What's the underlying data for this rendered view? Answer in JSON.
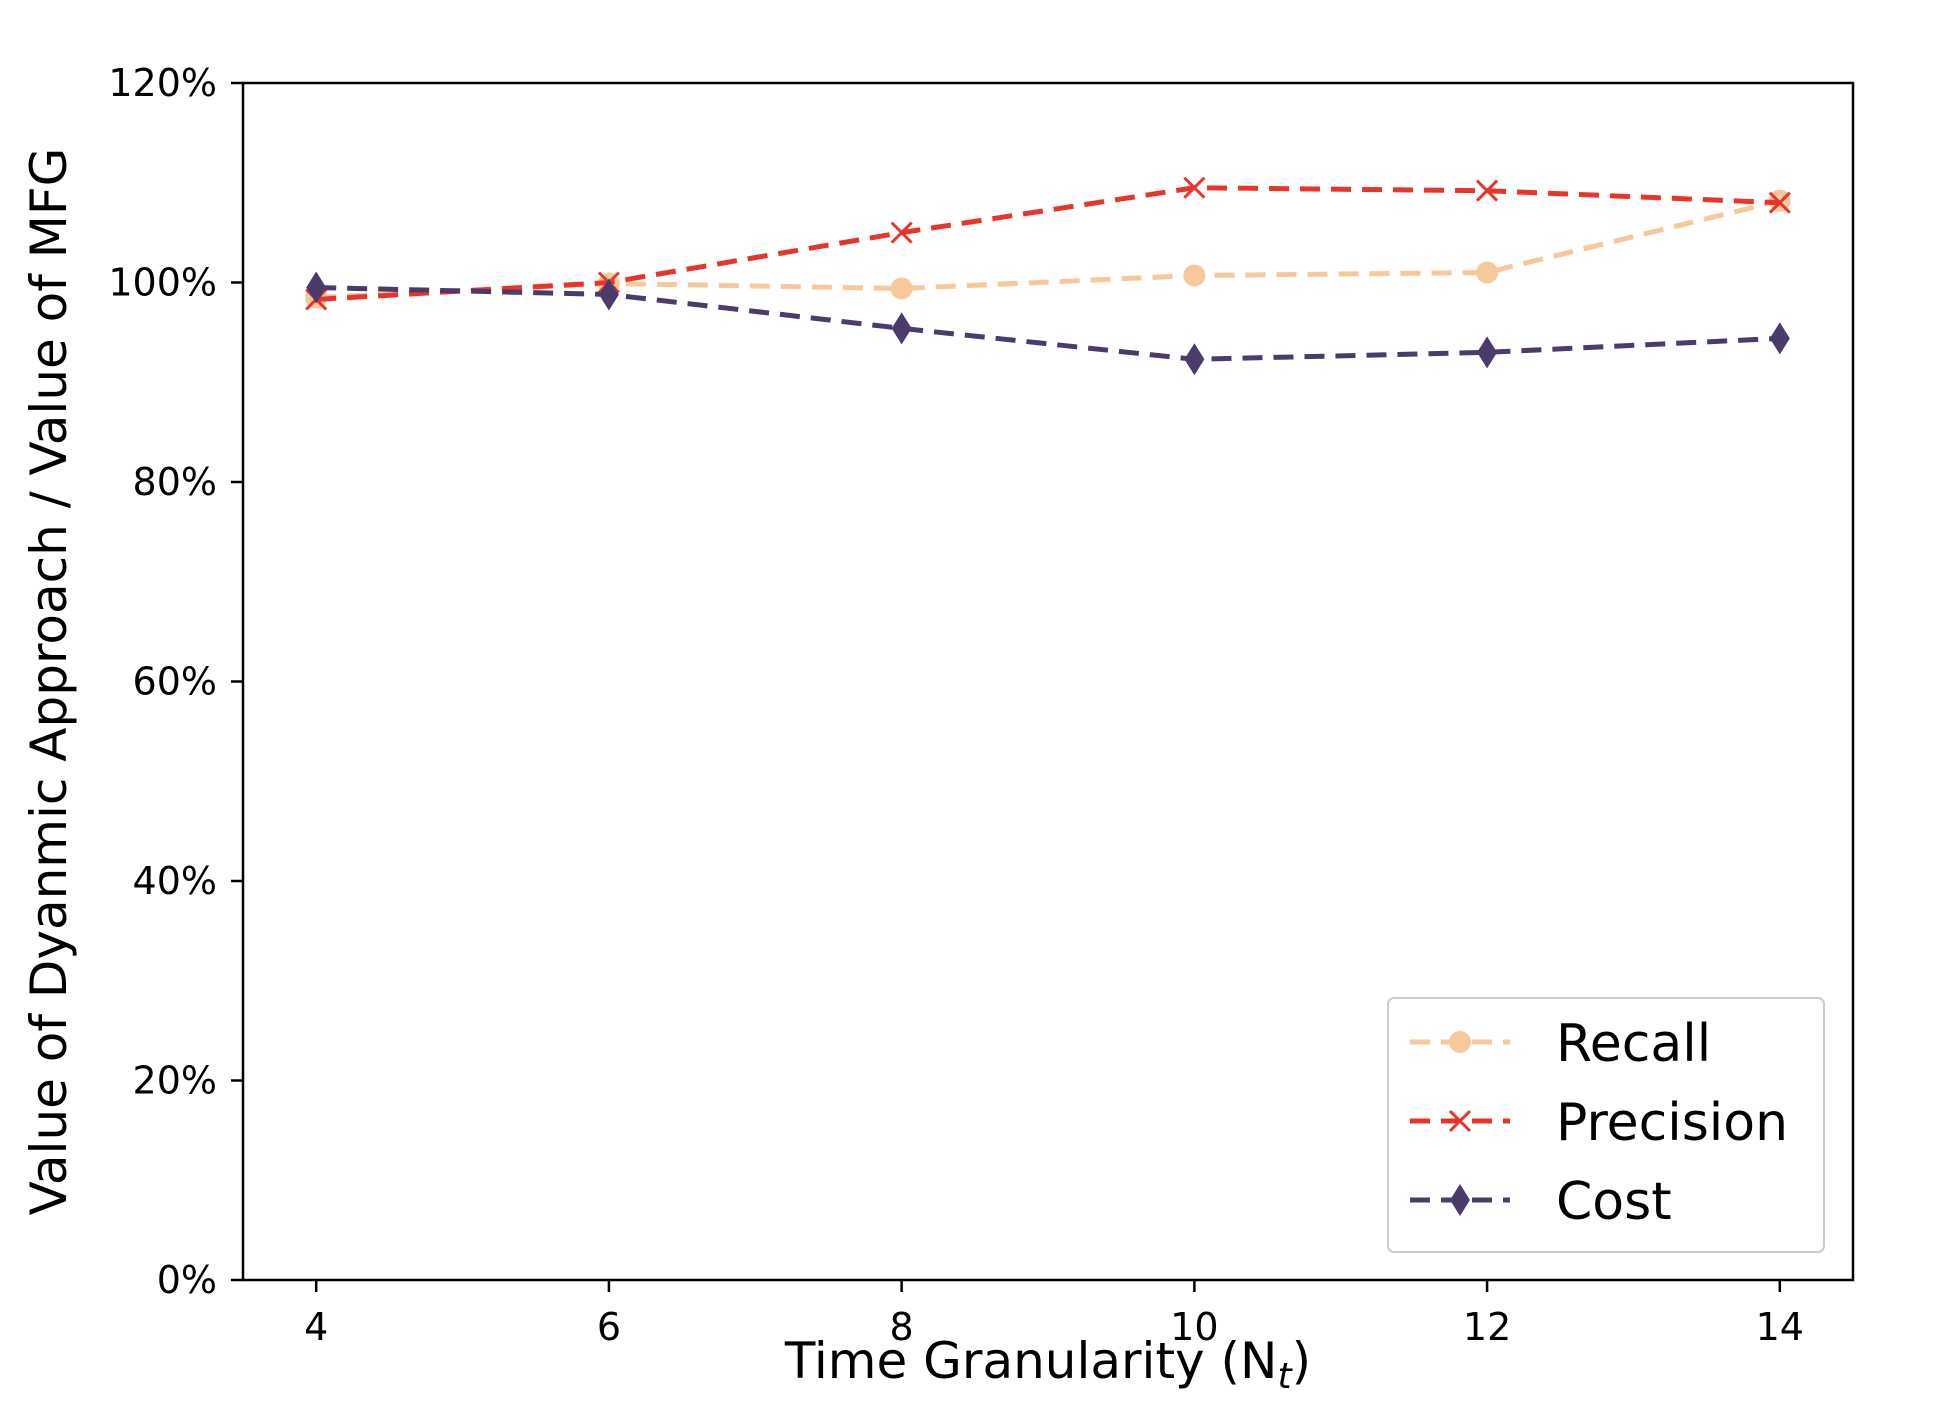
{
  "chart_data": {
    "type": "line",
    "title": "",
    "xlabel": "Time Granularity (N",
    "xlabel_sub": "t",
    "xlabel_suffix": ")",
    "ylabel": "Value of Dyanmic Approach / Value of MFG",
    "x": [
      4,
      6,
      8,
      10,
      12,
      14
    ],
    "xlim": [
      3.5,
      14.5
    ],
    "ylim": [
      0,
      120
    ],
    "xticks": [
      "4",
      "6",
      "8",
      "10",
      "12",
      "14"
    ],
    "yticks": [
      "0%",
      "20%",
      "40%",
      "60%",
      "80%",
      "100%",
      "120%"
    ],
    "grid": false,
    "legend_position": "bottom-right",
    "series": [
      {
        "name": "Recall",
        "marker": "circle",
        "color": "#f6c99c",
        "values": [
          98.5,
          99.9,
          99.4,
          100.7,
          101.0,
          108.2
        ]
      },
      {
        "name": "Precision",
        "marker": "x",
        "color": "#e8352b",
        "values": [
          98.3,
          100.0,
          105.0,
          109.5,
          109.2,
          108.0
        ]
      },
      {
        "name": "Cost",
        "marker": "diamond",
        "color": "#4a3b6b",
        "values": [
          99.5,
          98.8,
          95.4,
          92.3,
          93.0,
          94.4
        ]
      }
    ]
  }
}
